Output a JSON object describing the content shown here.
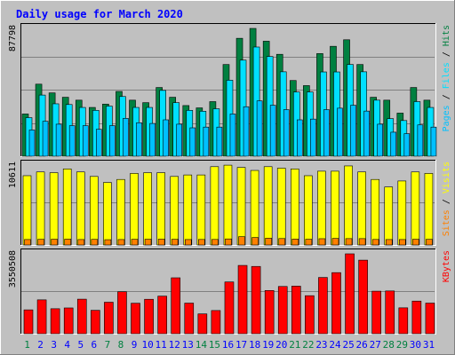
{
  "chart_data": {
    "type": "bar",
    "title": "Daily usage for March 2020",
    "categories": [
      "1",
      "2",
      "3",
      "4",
      "5",
      "6",
      "7",
      "8",
      "9",
      "10",
      "11",
      "12",
      "13",
      "14",
      "15",
      "16",
      "17",
      "18",
      "19",
      "20",
      "21",
      "22",
      "23",
      "24",
      "25",
      "26",
      "27",
      "28",
      "29",
      "30",
      "31"
    ],
    "weekend_days": [
      "1",
      "7",
      "8",
      "14",
      "15",
      "21",
      "22",
      "28",
      "29"
    ],
    "panels": [
      {
        "name": "hits-files-pages",
        "ymax": 87798,
        "ymax_label": "87798",
        "series": [
          {
            "name": "Hits",
            "color": "#008040",
            "values": [
              29000,
              49500,
              43500,
              40500,
              38500,
              33500,
              35800,
              44500,
              38500,
              36800,
              47200,
              40500,
              34800,
              33200,
              37500,
              63000,
              81000,
              87798,
              79000,
              70000,
              52000,
              48500,
              70500,
              75500,
              80000,
              63000,
              40500,
              38500,
              29600,
              47200,
              38500
            ]
          },
          {
            "name": "Files",
            "color": "#00e0ff",
            "values": [
              26500,
              42000,
              36000,
              35500,
              33500,
              31500,
              34400,
              41000,
              33500,
              33500,
              45200,
              36800,
              31500,
              30900,
              32600,
              52200,
              66000,
              75000,
              68500,
              58000,
              44100,
              44100,
              57900,
              57900,
              63000,
              58000,
              38500,
              25800,
              24500,
              37500,
              33500
            ]
          },
          {
            "name": "Pages",
            "color": "#00c0ff",
            "values": [
              18000,
              24000,
              22000,
              21000,
              21000,
              18500,
              21000,
              26000,
              23000,
              22500,
              25000,
              22000,
              19500,
              20000,
              20000,
              29000,
              34000,
              38000,
              35000,
              32000,
              25000,
              25500,
              32000,
              33000,
              35000,
              31000,
              22000,
              16500,
              15500,
              21500,
              20000
            ]
          }
        ]
      },
      {
        "name": "visits-sites",
        "ymax": 10611,
        "ymax_label": "10611",
        "series": [
          {
            "name": "Visits",
            "color": "#ffff00",
            "values": [
              9200,
              9700,
              9600,
              10100,
              9700,
              9100,
              8300,
              8700,
              9500,
              9600,
              9600,
              9100,
              9300,
              9300,
              10400,
              10600,
              10300,
              9900,
              10400,
              10200,
              10100,
              9200,
              9800,
              9800,
              10500,
              9700,
              8700,
              7700,
              8500,
              9700,
              9500
            ]
          },
          {
            "name": "Sites",
            "color": "#ff8000",
            "values": [
              720,
              750,
              760,
              770,
              720,
              740,
              700,
              720,
              750,
              760,
              770,
              750,
              720,
              730,
              730,
              800,
              1100,
              990,
              900,
              850,
              780,
              760,
              830,
              870,
              840,
              840,
              730,
              720,
              720,
              760,
              750
            ]
          }
        ]
      },
      {
        "name": "kbytes",
        "ymax": 3550508,
        "ymax_label": "3550508",
        "series": [
          {
            "name": "KBytes",
            "color": "#ff0000",
            "values": [
              1060000,
              1505000,
              1110000,
              1145000,
              1535000,
              1040000,
              1400000,
              1865000,
              1355000,
              1530000,
              1670000,
              2485000,
              1360000,
              880000,
              1030000,
              2300000,
              3035000,
              2990000,
              1920000,
              2100000,
              2115000,
              1690000,
              2500000,
              2715000,
              3550508,
              3270000,
              1890000,
              1900000,
              1150000,
              1450000,
              1360000
            ]
          }
        ]
      }
    ],
    "side_labels": [
      {
        "panel": "hits-files-pages",
        "parts": [
          {
            "text": "Pages",
            "color": "#00c0ff"
          },
          {
            "text": " / ",
            "color": "#000000"
          },
          {
            "text": "Files",
            "color": "#00e0ff"
          },
          {
            "text": " / ",
            "color": "#000000"
          },
          {
            "text": "Hits",
            "color": "#008040"
          }
        ]
      },
      {
        "panel": "visits-sites",
        "parts": [
          {
            "text": "Sites",
            "color": "#ff8000"
          },
          {
            "text": " / ",
            "color": "#000000"
          },
          {
            "text": "Visits",
            "color": "#ffff00"
          }
        ]
      },
      {
        "panel": "kbytes",
        "parts": [
          {
            "text": "KBytes",
            "color": "#ff0000"
          }
        ]
      }
    ],
    "colors": {
      "title": "#0000ff",
      "background": "#c0c0c0",
      "gridline": "#808080",
      "weekday_label": "#0000ff",
      "weekend_label": "#008040"
    },
    "grid": true,
    "legend": "right-side vertical"
  }
}
